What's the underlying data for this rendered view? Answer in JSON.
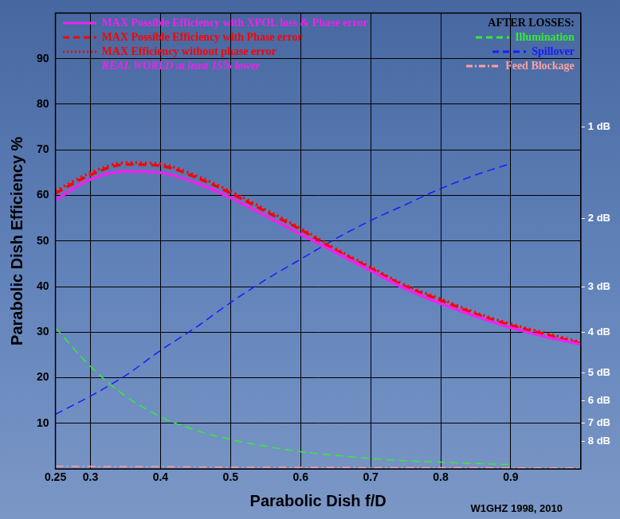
{
  "chart_data": {
    "type": "line",
    "x_label": "Parabolic Dish f/D",
    "y_label": "Parabolic Dish Efficiency %",
    "note": "REAL WORLD at least 15% lower",
    "group_title": "AFTER LOSSES:",
    "credit": "W1GHZ 1998, 2010",
    "x": [
      0.25,
      0.3,
      0.35,
      0.4,
      0.45,
      0.5,
      0.55,
      0.6,
      0.65,
      0.7,
      0.75,
      0.8,
      0.85,
      0.9,
      0.95,
      1.0
    ],
    "series": [
      {
        "name": "MAX Possible Efficiency with XPOL loss & Phase error",
        "color": "#ee22ee",
        "line_style": "solid",
        "marker": "none",
        "values": [
          59,
          63.5,
          65.3,
          65,
          62.8,
          59.5,
          55.5,
          51.5,
          47.5,
          43.5,
          39.5,
          36.3,
          33.5,
          31,
          29,
          27.3
        ]
      },
      {
        "name": "MAX Possible Efficiency with Phase error",
        "color": "#ff0000",
        "line_style": "dashed",
        "marker": "none",
        "values": [
          60.5,
          64.5,
          66.8,
          66.5,
          64,
          60.5,
          56.5,
          52.5,
          48,
          44,
          40,
          37,
          34,
          31.5,
          29.5,
          27.5
        ]
      },
      {
        "name": "MAX Efficiency without phase error",
        "color": "#ff0000",
        "line_style": "dotted",
        "marker": "none",
        "values": [
          61,
          65,
          67.2,
          66.9,
          64.4,
          60.9,
          56.9,
          52.8,
          48.3,
          44.3,
          40.3,
          37.3,
          34.3,
          31.8,
          29.8,
          27.8
        ]
      },
      {
        "name": "Illumination",
        "color": "#33ee33",
        "line_style": "dashed",
        "marker": "none",
        "values": [
          31,
          22.5,
          16,
          11.5,
          8.5,
          6.5,
          5,
          3.8,
          3,
          2.3,
          1.8,
          1.5,
          1.2,
          1,
          null,
          null
        ]
      },
      {
        "name": "Spillover",
        "color": "#1a1aff",
        "line_style": "dashed",
        "marker": "none",
        "values": [
          12,
          16,
          20.5,
          26,
          31,
          36.5,
          41.5,
          46,
          50.5,
          54.5,
          58,
          61.5,
          64.5,
          67,
          null,
          null
        ]
      },
      {
        "name": "Feed Blockage",
        "color": "#ffa0a0",
        "line_style": "dashdot",
        "marker": "none",
        "values": [
          0.6,
          0.55,
          0.5,
          0.5,
          0.45,
          0.4,
          0.4,
          0.35,
          0.35,
          0.3,
          0.3,
          0.3,
          0.3,
          0.25,
          0.25,
          0.25
        ]
      }
    ],
    "xlim": [
      0.25,
      1.0
    ],
    "xticks": [
      0.25,
      0.3,
      0.4,
      0.5,
      0.6,
      0.7,
      0.8,
      0.9
    ],
    "ylim": [
      0,
      100
    ],
    "yticks": [
      10,
      20,
      30,
      40,
      50,
      60,
      70,
      80,
      90
    ],
    "y2lim": [
      0,
      100
    ],
    "y2ticks": [
      {
        "value": 75,
        "label": "1 dB"
      },
      {
        "value": 55,
        "label": "2 dB"
      },
      {
        "value": 40,
        "label": "3 dB"
      },
      {
        "value": 30,
        "label": "4 dB"
      },
      {
        "value": 21,
        "label": "5 dB"
      },
      {
        "value": 15,
        "label": "6 dB"
      },
      {
        "value": 10,
        "label": "7 dB"
      },
      {
        "value": 6,
        "label": "8 dB"
      }
    ],
    "grid": true,
    "legend": "top"
  }
}
